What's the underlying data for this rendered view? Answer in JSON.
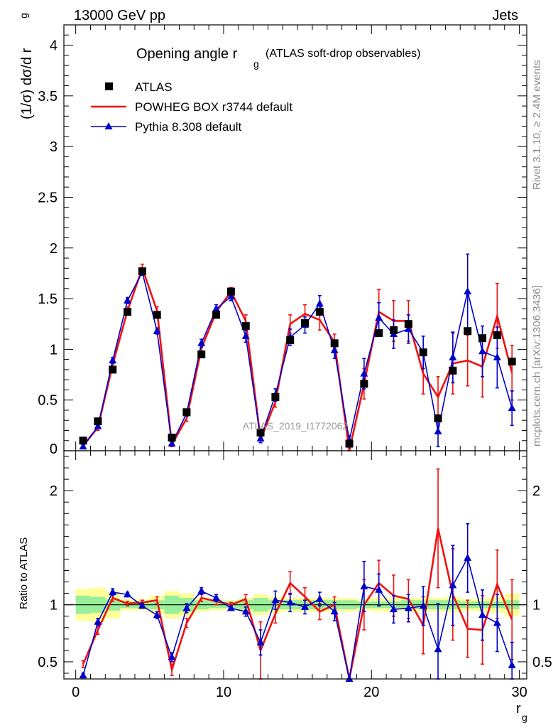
{
  "header": {
    "left": "13000 GeV pp",
    "right": "Jets"
  },
  "side_labels": {
    "top": "Rivet 3.1.10, ≥ 2.4M events",
    "bottom": "mcplots.cern.ch [arXiv:1306.3436]"
  },
  "watermark": "ATLAS_2019_I1772062",
  "chart_data": {
    "type": "line",
    "title_main": "Opening angle r",
    "title_sub": "g",
    "title_extra": "(ATLAS soft-drop observables)",
    "xlabel": "r",
    "xlabel_sub": "g",
    "ylabel_top": "(1/σ) dσ/d r",
    "ylabel_top_sub": "g",
    "ylabel_ratio": "Ratio to ATLAS",
    "xlim": [
      -0.8,
      30.5
    ],
    "ylim_top": [
      0,
      4.2
    ],
    "ylim_ratio": [
      0.35,
      2.35
    ],
    "x_ticks": [
      "0",
      "10",
      "20",
      "30"
    ],
    "y_ticks_top": [
      "0",
      "0.5",
      "1",
      "1.5",
      "2",
      "2.5",
      "3",
      "3.5",
      "4"
    ],
    "y_ticks_ratio": [
      "0.5",
      "1",
      "2"
    ],
    "legend_position": "top-left",
    "x": [
      0.5,
      1.5,
      2.5,
      3.5,
      4.5,
      5.5,
      6.5,
      7.5,
      8.5,
      9.5,
      10.5,
      11.5,
      12.5,
      13.5,
      14.5,
      15.5,
      16.5,
      17.5,
      18.5,
      19.5,
      20.5,
      21.5,
      22.5,
      23.5,
      24.5,
      25.5,
      26.5,
      27.5,
      28.5,
      29.5
    ],
    "series": [
      {
        "name": "ATLAS",
        "color": "#000000",
        "marker": "square",
        "values": [
          0.1,
          0.29,
          0.8,
          1.37,
          1.77,
          1.34,
          0.13,
          0.38,
          0.95,
          1.34,
          1.57,
          1.23,
          0.18,
          0.53,
          1.09,
          1.26,
          1.37,
          1.06,
          0.07,
          0.66,
          1.16,
          1.19,
          1.25,
          0.97,
          0.32,
          0.79,
          1.18,
          1.11,
          1.14,
          0.88
        ]
      },
      {
        "name": "POWHEG BOX r3744 default",
        "color": "#ee1111",
        "marker": "none",
        "values": [
          0.05,
          0.23,
          0.85,
          1.38,
          1.8,
          1.38,
          0.06,
          0.32,
          1.01,
          1.37,
          1.57,
          1.28,
          0.11,
          0.48,
          1.25,
          1.35,
          1.29,
          1.07,
          0.0,
          0.66,
          1.37,
          1.28,
          1.28,
          0.76,
          0.53,
          0.86,
          0.89,
          0.83,
          1.33,
          0.77
        ],
        "err": [
          0.02,
          0.03,
          0.04,
          0.04,
          0.04,
          0.04,
          0.02,
          0.03,
          0.04,
          0.04,
          0.04,
          0.06,
          0.03,
          0.05,
          0.09,
          0.09,
          0.1,
          0.08,
          0.03,
          0.15,
          0.22,
          0.2,
          0.2,
          0.2,
          0.2,
          0.3,
          0.25,
          0.3,
          0.32,
          0.27
        ]
      },
      {
        "name": "Pythia 8.308 default",
        "color": "#0000cc",
        "marker": "triangle",
        "values": [
          0.04,
          0.24,
          0.89,
          1.48,
          1.76,
          1.18,
          0.07,
          0.37,
          1.06,
          1.4,
          1.52,
          1.13,
          0.12,
          0.55,
          1.12,
          1.24,
          1.45,
          0.99,
          0.1,
          0.76,
          1.31,
          1.15,
          1.2,
          0.97,
          0.19,
          0.92,
          1.57,
          0.98,
          0.92,
          0.42
        ],
        "err": [
          0.02,
          0.02,
          0.03,
          0.03,
          0.03,
          0.03,
          0.02,
          0.03,
          0.04,
          0.04,
          0.04,
          0.06,
          0.04,
          0.06,
          0.08,
          0.08,
          0.08,
          0.08,
          0.05,
          0.15,
          0.15,
          0.14,
          0.14,
          0.16,
          0.15,
          0.25,
          0.37,
          0.25,
          0.3,
          0.17
        ]
      }
    ],
    "ratio": {
      "band_inner_halfwidth": [
        0.08,
        0.07,
        0.05,
        0.03,
        0.03,
        0.04,
        0.08,
        0.06,
        0.04,
        0.03,
        0.03,
        0.04,
        0.06,
        0.04,
        0.04,
        0.04,
        0.04,
        0.04,
        0.04,
        0.03,
        0.03,
        0.03,
        0.04,
        0.04,
        0.04,
        0.04,
        0.03,
        0.03,
        0.03,
        0.04
      ],
      "band_outer_halfwidth": [
        0.14,
        0.15,
        0.12,
        0.05,
        0.05,
        0.08,
        0.12,
        0.1,
        0.06,
        0.05,
        0.04,
        0.06,
        0.09,
        0.07,
        0.06,
        0.06,
        0.06,
        0.06,
        0.06,
        0.05,
        0.06,
        0.06,
        0.06,
        0.06,
        0.06,
        0.07,
        0.05,
        0.06,
        0.07,
        0.1
      ],
      "series": [
        {
          "name": "POWHEG BOX r3744 default",
          "values": [
            0.48,
            0.78,
            1.06,
            1.01,
            1.02,
            1.04,
            0.43,
            0.84,
            1.06,
            1.03,
            1.0,
            1.05,
            0.6,
            0.92,
            1.19,
            1.07,
            0.94,
            1.0,
            0.0,
            1.0,
            1.19,
            1.08,
            1.05,
            0.82,
            1.67,
            1.09,
            0.79,
            0.78,
            1.18,
            0.87
          ],
          "err": [
            0.03,
            0.04,
            0.03,
            0.02,
            0.02,
            0.03,
            0.05,
            0.04,
            0.03,
            0.03,
            0.02,
            0.04,
            0.25,
            0.08,
            0.1,
            0.08,
            0.07,
            0.07,
            0.0,
            0.22,
            0.2,
            0.18,
            0.17,
            0.25,
            0.52,
            0.4,
            0.25,
            0.3,
            0.3,
            0.35
          ]
        },
        {
          "name": "Pythia 8.308 default",
          "values": [
            0.38,
            0.85,
            1.11,
            1.09,
            0.99,
            0.91,
            0.54,
            0.97,
            1.12,
            1.06,
            0.97,
            0.94,
            0.67,
            1.04,
            1.02,
            0.98,
            1.05,
            0.94,
            0.0,
            1.16,
            1.13,
            0.96,
            0.97,
            0.99,
            0.61,
            1.17,
            1.41,
            0.91,
            0.84,
            0.47
          ],
          "err": [
            0.02,
            0.03,
            0.03,
            0.02,
            0.02,
            0.03,
            0.04,
            0.04,
            0.03,
            0.03,
            0.02,
            0.04,
            0.11,
            0.08,
            0.08,
            0.06,
            0.06,
            0.08,
            0.0,
            0.22,
            0.14,
            0.12,
            0.12,
            0.17,
            0.4,
            0.35,
            0.3,
            0.22,
            0.25,
            0.2
          ]
        }
      ]
    }
  }
}
